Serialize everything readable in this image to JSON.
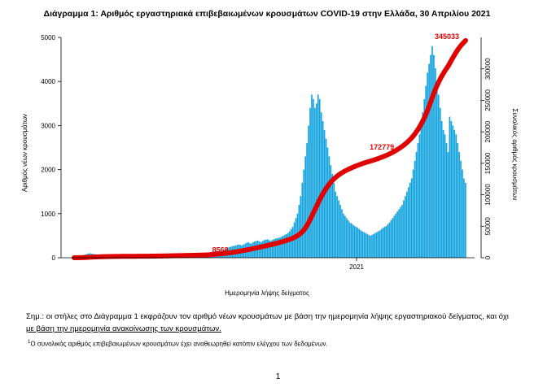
{
  "chart_data": {
    "type": "bar",
    "title": "Διάγραμμα 1: Αριθμός εργαστηριακά επιβεβαιωμένων κρουσμάτων COVID-19 στην Ελλάδα, 30 Απριλίου 2021",
    "xlabel": "Ημερομηνία λήψης δείγματος",
    "x_tick_label": "2021",
    "ylabel_left": "Αριθμός νέων κρουσμάτων",
    "ylabel_right": "Συνολικός αριθμός κρουσμάτων",
    "ylim_left": [
      0,
      5000
    ],
    "yticks_left": [
      0,
      1000,
      2000,
      3000,
      4000,
      5000
    ],
    "ylim_right": [
      0,
      350000
    ],
    "yticks_right": [
      0,
      50000,
      100000,
      150000,
      200000,
      250000,
      300000
    ],
    "bar_color": "#12a3de",
    "line_color": "#e00000",
    "grid": false,
    "series": [
      {
        "name": "new_cases",
        "axis": "left",
        "period": "daily, early 2020 to end of April 2021",
        "values": [
          10,
          12,
          15,
          20,
          30,
          45,
          60,
          70,
          80,
          95,
          100,
          90,
          85,
          80,
          75,
          70,
          65,
          60,
          55,
          50,
          45,
          40,
          38,
          35,
          30,
          28,
          25,
          22,
          20,
          18,
          18,
          15,
          15,
          14,
          12,
          12,
          10,
          10,
          10,
          10,
          10,
          10,
          10,
          10,
          12,
          12,
          15,
          15,
          18,
          20,
          22,
          25,
          25,
          30,
          28,
          30,
          32,
          35,
          35,
          40,
          35,
          38,
          35,
          30,
          30,
          35,
          40,
          45,
          40,
          40,
          35,
          38,
          35,
          30,
          30,
          32,
          35,
          40,
          45,
          50,
          55,
          60,
          70,
          80,
          90,
          100,
          110,
          120,
          130,
          150,
          160,
          150,
          140,
          150,
          160,
          180,
          200,
          220,
          240,
          250,
          260,
          270,
          280,
          290,
          300,
          290,
          280,
          300,
          320,
          340,
          350,
          330,
          320,
          350,
          370,
          380,
          390,
          370,
          350,
          380,
          400,
          410,
          420,
          400,
          380,
          400,
          420,
          430,
          440,
          450,
          460,
          480,
          500,
          520,
          540,
          560,
          600,
          650,
          700,
          800,
          900,
          1000,
          1200,
          1400,
          1700,
          2000,
          2300,
          2600,
          3000,
          3400,
          3700,
          3600,
          3400,
          3500,
          3700,
          3600,
          3300,
          3100,
          2900,
          2700,
          2500,
          2300,
          2100,
          1900,
          1700,
          1500,
          1400,
          1300,
          1200,
          1100,
          1000,
          950,
          900,
          850,
          800,
          780,
          750,
          720,
          700,
          680,
          650,
          620,
          600,
          580,
          560,
          540,
          520,
          500,
          520,
          540,
          560,
          580,
          600,
          620,
          650,
          680,
          700,
          720,
          760,
          800,
          850,
          900,
          950,
          1000,
          1050,
          1100,
          1150,
          1200,
          1300,
          1400,
          1500,
          1600,
          1700,
          1800,
          2000,
          2200,
          2400,
          2600,
          2800,
          3000,
          3300,
          3600,
          3900,
          4200,
          4400,
          4600,
          4800,
          4600,
          4300,
          4000,
          3700,
          3400,
          3100,
          2900,
          2800,
          2600,
          2400,
          3200,
          3100,
          3000,
          2900,
          2800,
          2600,
          2400,
          2200,
          2000,
          1800,
          1700
        ]
      },
      {
        "name": "cumulative_cases",
        "axis": "right",
        "type": "line",
        "checkpoints": [
          {
            "label": "8568",
            "value": 8568
          },
          {
            "label": "172779",
            "value": 172779
          },
          {
            "label": "345033",
            "value": 345033
          }
        ],
        "final_value": 345033
      }
    ],
    "annotations": [
      "8568",
      "172779",
      "345033"
    ]
  },
  "note": {
    "lead": "Σημ.: οι στήλες στο Διάγραμμα 1 εκφράζουν τον αριθμό νέων κρουσμάτων με βάση την ημερομηνία λήψης εργαστηριακού δείγματος, και όχι",
    "tail": "με βάση την ημερομηνία ανακοίνωσης των κρουσμάτων."
  },
  "footnote": {
    "mark": "1",
    "text": "Ο συνολικός αριθμός επιβεβαιωμένων κρουσμάτων έχει αναθεωρηθεί κατόπιν ελέγχου των δεδομένων."
  },
  "page_number": "1"
}
